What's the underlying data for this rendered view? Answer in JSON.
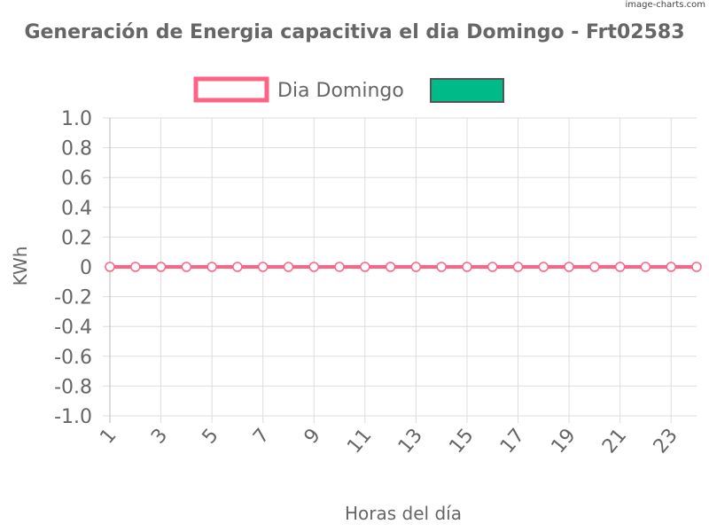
{
  "watermark": "image-charts.com",
  "chart_data": {
    "type": "line",
    "title": "Generación de Energia capacitiva el dia Domingo - Frt02583",
    "xlabel": "Horas del día",
    "ylabel": "KWh",
    "x": [
      1,
      2,
      3,
      4,
      5,
      6,
      7,
      8,
      9,
      10,
      11,
      12,
      13,
      14,
      15,
      16,
      17,
      18,
      19,
      20,
      21,
      22,
      23,
      24
    ],
    "x_tick_labels": [
      "1",
      "3",
      "5",
      "7",
      "9",
      "11",
      "13",
      "15",
      "17",
      "19",
      "21",
      "23"
    ],
    "y_tick_labels": [
      "1.0",
      "0.8",
      "0.6",
      "0.4",
      "0.2",
      "0",
      "-0.2",
      "-0.4",
      "-0.6",
      "-0.8",
      "-1.0"
    ],
    "ylim": [
      -1.0,
      1.0
    ],
    "grid": true,
    "legend_position": "top",
    "series": [
      {
        "name": "Dia Domingo",
        "color": "#ff6384",
        "values": [
          0,
          0,
          0,
          0,
          0,
          0,
          0,
          0,
          0,
          0,
          0,
          0,
          0,
          0,
          0,
          0,
          0,
          0,
          0,
          0,
          0,
          0,
          0,
          0
        ]
      }
    ],
    "legend": [
      {
        "label": "Dia Domingo",
        "stroke": "#ff6384",
        "fill": "#ffffff"
      },
      {
        "label": "",
        "stroke": "#555555",
        "fill": "#00bb88"
      }
    ]
  }
}
